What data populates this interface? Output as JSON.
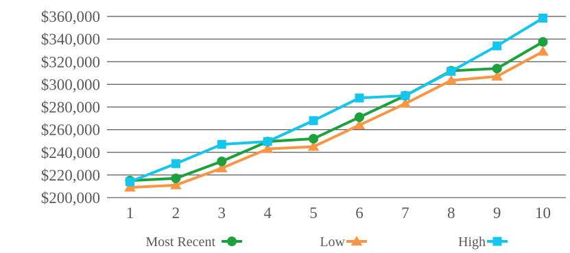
{
  "chart_data": {
    "type": "line",
    "categories": [
      "1",
      "2",
      "3",
      "4",
      "5",
      "6",
      "7",
      "8",
      "9",
      "10"
    ],
    "y_tick_labels": [
      "$200,000",
      "$220,000",
      "$240,000",
      "$260,000",
      "$280,000",
      "$300,000",
      "$320,000",
      "$340,000",
      "$360,000"
    ],
    "ylim": [
      200000,
      360000
    ],
    "y_step": 20000,
    "grid": true,
    "legend_position": "bottom",
    "series": [
      {
        "name": "Most Recent",
        "color": "#1fa03e",
        "marker": "circle",
        "values": [
          215000,
          217000,
          232000,
          249500,
          252000,
          271000,
          290000,
          312000,
          314000,
          337500
        ]
      },
      {
        "name": "Low",
        "color": "#f79646",
        "marker": "triangle",
        "values": [
          209000,
          211000,
          226000,
          243000,
          245000,
          264000,
          283000,
          303500,
          307000,
          329000
        ]
      },
      {
        "name": "High",
        "color": "#16c5ec",
        "marker": "square",
        "values": [
          214000,
          230000,
          247000,
          249500,
          268000,
          288000,
          290000,
          311500,
          334000,
          358500
        ]
      }
    ]
  }
}
